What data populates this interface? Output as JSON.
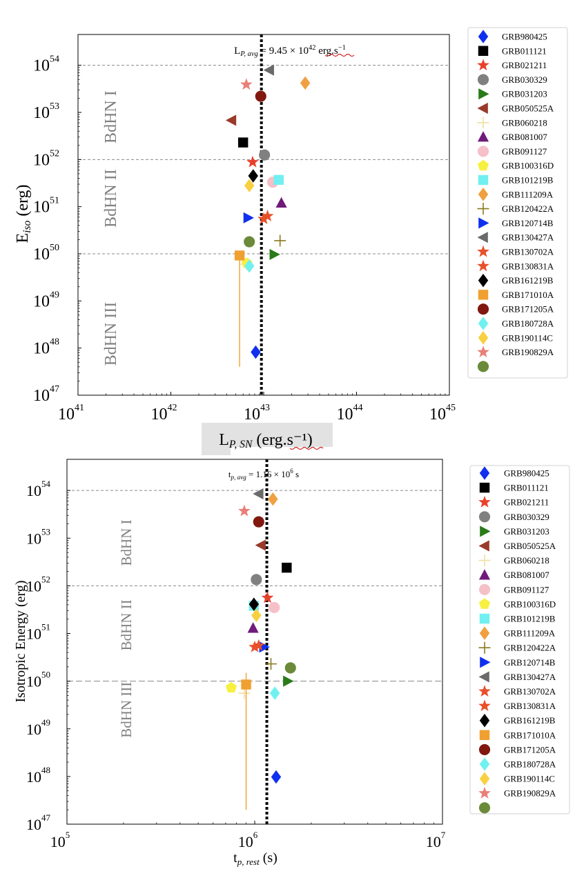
{
  "chart_data": [
    {
      "type": "scatter",
      "xscale": "log",
      "yscale": "log",
      "xlim": [
        1e+41,
        1e+45
      ],
      "ylim": [
        1e+47,
        4.5e+54
      ],
      "xlabel_main": "L",
      "xlabel_sub": "P, SN",
      "xlabel_unit": " (erg.s⁻¹)",
      "ylabel_main": "E",
      "ylabel_sub": "iso",
      "ylabel_unit": " (erg)",
      "xticks": [
        {
          "value": 1e+41,
          "base": "10",
          "exp": "41"
        },
        {
          "value": 1e+42,
          "base": "10",
          "exp": "42"
        },
        {
          "value": 1e+43,
          "base": "10",
          "exp": "43"
        },
        {
          "value": 1e+44,
          "base": "10",
          "exp": "44"
        },
        {
          "value": 1e+45,
          "base": "10",
          "exp": "45"
        }
      ],
      "yticks": [
        {
          "value": 1e+47,
          "base": "10",
          "exp": "47"
        },
        {
          "value": 1e+48,
          "base": "10",
          "exp": "48"
        },
        {
          "value": 1e+49,
          "base": "10",
          "exp": "49"
        },
        {
          "value": 1e+50,
          "base": "10",
          "exp": "50"
        },
        {
          "value": 1e+51,
          "base": "10",
          "exp": "51"
        },
        {
          "value": 1e+52,
          "base": "10",
          "exp": "52"
        },
        {
          "value": 1e+53,
          "base": "10",
          "exp": "53"
        },
        {
          "value": 1e+54,
          "base": "10",
          "exp": "54"
        }
      ],
      "hlines": [
        1e+54,
        1e+52,
        1e+50
      ],
      "vline": {
        "value": 9.45e+42,
        "label_main": "L",
        "label_sub": "P, avg",
        "label_text": " = 9.45 × 10",
        "label_exp": "42",
        "label_unit": " erg.s",
        "label_unit_exp": "−1"
      },
      "regions": [
        {
          "label": "BdHN I",
          "y_center": 8e+52
        },
        {
          "label": "BdHN II",
          "y_center": 1.5e+51
        },
        {
          "label": "BdHN III",
          "y_center": 2e+48
        }
      ],
      "series": [
        {
          "name": "GRB980425",
          "marker": "diamond",
          "color": "#1030ee",
          "x": 8.2e+42,
          "y": 8.2e+47
        },
        {
          "name": "GRB011121",
          "marker": "square",
          "color": "#000000",
          "x": 6e+42,
          "y": 2.3e+52
        },
        {
          "name": "GRB021211",
          "marker": "star",
          "color": "#e8402a",
          "x": 7.6e+42,
          "y": 8.8e+51
        },
        {
          "name": "GRB030329",
          "marker": "circle",
          "color": "#808080",
          "x": 1.02e+43,
          "y": 1.25e+52
        },
        {
          "name": "GRB031203",
          "marker": "triangle-right",
          "color": "#2a7a1a",
          "x": 1.3e+43,
          "y": 9.7e+49
        },
        {
          "name": "GRB050525A",
          "marker": "triangle-left",
          "color": "#9a3a2a",
          "x": 4.5e+42,
          "y": 6.8e+52
        },
        {
          "name": "GRB060218",
          "marker": "plus",
          "color": "#f0e0a0",
          "x": 6.5e+42,
          "y": 6e+49
        },
        {
          "name": "GRB081007",
          "marker": "triangle-up",
          "color": "#701a7a",
          "x": 1.55e+43,
          "y": 1.2e+51
        },
        {
          "name": "GRB091127",
          "marker": "circle",
          "color": "#f5c0c8",
          "x": 1.25e+43,
          "y": 3.3e+51
        },
        {
          "name": "GRB100316D",
          "marker": "pentagon",
          "color": "#f8f040",
          "x": 6.6e+42,
          "y": 6.3e+49
        },
        {
          "name": "GRB101219B",
          "marker": "square",
          "color": "#70f0f0",
          "x": 1.45e+43,
          "y": 3.7e+51
        },
        {
          "name": "GRB111209A",
          "marker": "diamond",
          "color": "#f0a040",
          "x": 2.8e+43,
          "y": 4.2e+53
        },
        {
          "name": "GRB120422A",
          "marker": "plus",
          "color": "#8a7a1a",
          "x": 1.5e+43,
          "y": 1.9e+50
        },
        {
          "name": "GRB120714B",
          "marker": "triangle-right",
          "color": "#1030ee",
          "x": 6.8e+42,
          "y": 5.8e+50
        },
        {
          "name": "GRB130427A",
          "marker": "triangle-left",
          "color": "#6a6a6a",
          "x": 1.15e+43,
          "y": 7.9e+53
        },
        {
          "name": "GRB130702A",
          "marker": "star",
          "color": "#e8502a",
          "x": 1.1e+43,
          "y": 6.3e+50
        },
        {
          "name": "GRB130831A",
          "marker": "star",
          "color": "#e8502a",
          "x": 1e+43,
          "y": 5.5e+50
        },
        {
          "name": "GRB161219B",
          "marker": "diamond",
          "color": "#000000",
          "x": 7.7e+42,
          "y": 4.5e+51
        },
        {
          "name": "GRB171010A",
          "marker": "square",
          "color": "#f0a030",
          "x": 5.5e+42,
          "y": 9.2e+49,
          "err_y": [
            4e+47,
            9.2e+49
          ]
        },
        {
          "name": "GRB171205A",
          "marker": "circle",
          "color": "#801810",
          "x": 9.3e+42,
          "y": 2.2e+53
        },
        {
          "name": "GRB180728A",
          "marker": "diamond",
          "color": "#70f0f0",
          "x": 7e+42,
          "y": 5.5e+49
        },
        {
          "name": "GRB190114C",
          "marker": "diamond",
          "color": "#f8d040",
          "x": 7e+42,
          "y": 2.8e+51
        },
        {
          "name": "GRB190829A",
          "marker": "star",
          "color": "#e88078",
          "x": 6.5e+42,
          "y": 3.9e+53
        },
        {
          "name": "",
          "marker": "circle",
          "color": "#6a8a3a",
          "x": 7e+42,
          "y": 1.8e+50
        }
      ]
    },
    {
      "type": "scatter",
      "xscale": "log",
      "yscale": "log",
      "xlim": [
        100000.0,
        10000000.0
      ],
      "ylim": [
        1e+47,
        4.5e+54
      ],
      "xlabel_main": "t",
      "xlabel_sub": "p, rest",
      "xlabel_unit": " (s)",
      "ylabel_main": "Isotropic Energy (erg)",
      "xticks": [
        {
          "value": 100000.0,
          "base": "10",
          "exp": "5"
        },
        {
          "value": 1000000.0,
          "base": "10",
          "exp": "6"
        },
        {
          "value": 10000000.0,
          "base": "10",
          "exp": "7"
        }
      ],
      "yticks": [
        {
          "value": 1e+47,
          "base": "10",
          "exp": "47"
        },
        {
          "value": 1e+48,
          "base": "10",
          "exp": "48"
        },
        {
          "value": 1e+49,
          "base": "10",
          "exp": "49"
        },
        {
          "value": 1e+50,
          "base": "10",
          "exp": "50"
        },
        {
          "value": 1e+51,
          "base": "10",
          "exp": "51"
        },
        {
          "value": 1e+52,
          "base": "10",
          "exp": "52"
        },
        {
          "value": 1e+53,
          "base": "10",
          "exp": "53"
        },
        {
          "value": 1e+54,
          "base": "10",
          "exp": "54"
        }
      ],
      "hlines": [
        1e+54,
        1e+52,
        1e+50
      ],
      "vline": {
        "value": 1160000.0,
        "label_main": "t",
        "label_sub": "p, avg",
        "label_text": " = 1.16 × 10",
        "label_exp": "6",
        "label_unit": " s",
        "label_unit_exp": ""
      },
      "regions": [
        {
          "label": "BdHN I",
          "y_center": 8e+52
        },
        {
          "label": "BdHN II",
          "y_center": 1.5e+51
        },
        {
          "label": "BdHN III",
          "y_center": 2.5e+49
        }
      ],
      "series": [
        {
          "name": "GRB980425",
          "marker": "diamond",
          "color": "#1030ee",
          "x": 1300000.0,
          "y": 9.8e+47
        },
        {
          "name": "GRB011121",
          "marker": "square",
          "color": "#000000",
          "x": 1480000.0,
          "y": 2.4e+52
        },
        {
          "name": "GRB021211",
          "marker": "star",
          "color": "#e8402a",
          "x": 1170000.0,
          "y": 5.6e+51
        },
        {
          "name": "GRB030329",
          "marker": "circle",
          "color": "#808080",
          "x": 1020000.0,
          "y": 1.35e+52
        },
        {
          "name": "GRB031203",
          "marker": "triangle-right",
          "color": "#2a7a1a",
          "x": 1500000.0,
          "y": 1e+50
        },
        {
          "name": "GRB050525A",
          "marker": "triangle-left",
          "color": "#9a3a2a",
          "x": 1080000.0,
          "y": 7.1e+52
        },
        {
          "name": "GRB060218",
          "marker": "plus",
          "color": "#f0e0a0",
          "x": 880000.0,
          "y": 5.6e+49
        },
        {
          "name": "GRB081007",
          "marker": "triangle-up",
          "color": "#701a7a",
          "x": 980000.0,
          "y": 1.3e+51
        },
        {
          "name": "GRB091127",
          "marker": "circle",
          "color": "#f5c0c8",
          "x": 1270000.0,
          "y": 3.5e+51
        },
        {
          "name": "GRB100316D",
          "marker": "pentagon",
          "color": "#f8f040",
          "x": 750000.0,
          "y": 7.3e+49
        },
        {
          "name": "GRB101219B",
          "marker": "square",
          "color": "#70f0f0",
          "x": 990000.0,
          "y": 3.8e+51
        },
        {
          "name": "GRB111209A",
          "marker": "diamond",
          "color": "#f0a040",
          "x": 1250000.0,
          "y": 6.6e+53
        },
        {
          "name": "GRB120422A",
          "marker": "plus",
          "color": "#8a7a1a",
          "x": 1220000.0,
          "y": 2.3e+50
        },
        {
          "name": "GRB120714B",
          "marker": "triangle-right",
          "color": "#1030ee",
          "x": 1120000.0,
          "y": 5.2e+50
        },
        {
          "name": "GRB130427A",
          "marker": "triangle-left",
          "color": "#6a6a6a",
          "x": 1050000.0,
          "y": 8.5e+53
        },
        {
          "name": "GRB130702A",
          "marker": "star",
          "color": "#e8502a",
          "x": 1050000.0,
          "y": 5.6e+50
        },
        {
          "name": "GRB130831A",
          "marker": "star",
          "color": "#e8502a",
          "x": 1000000.0,
          "y": 5.2e+50
        },
        {
          "name": "GRB161219B",
          "marker": "diamond",
          "color": "#000000",
          "x": 990000.0,
          "y": 4.1e+51
        },
        {
          "name": "GRB171010A",
          "marker": "square",
          "color": "#f0a030",
          "x": 900000.0,
          "y": 8.5e+49,
          "err_y": [
            2e+47,
            1.5e+50
          ]
        },
        {
          "name": "GRB171205A",
          "marker": "circle",
          "color": "#801810",
          "x": 1050000.0,
          "y": 2.2e+53
        },
        {
          "name": "GRB180728A",
          "marker": "diamond",
          "color": "#70f0f0",
          "x": 1280000.0,
          "y": 5.6e+49
        },
        {
          "name": "GRB190114C",
          "marker": "diamond",
          "color": "#f8d040",
          "x": 1020000.0,
          "y": 2.4e+51
        },
        {
          "name": "GRB190829A",
          "marker": "star",
          "color": "#e88078",
          "x": 880000.0,
          "y": 3.7e+53
        },
        {
          "name": "",
          "marker": "circle",
          "color": "#6a8a3a",
          "x": 1550000.0,
          "y": 1.9e+50
        }
      ]
    }
  ]
}
